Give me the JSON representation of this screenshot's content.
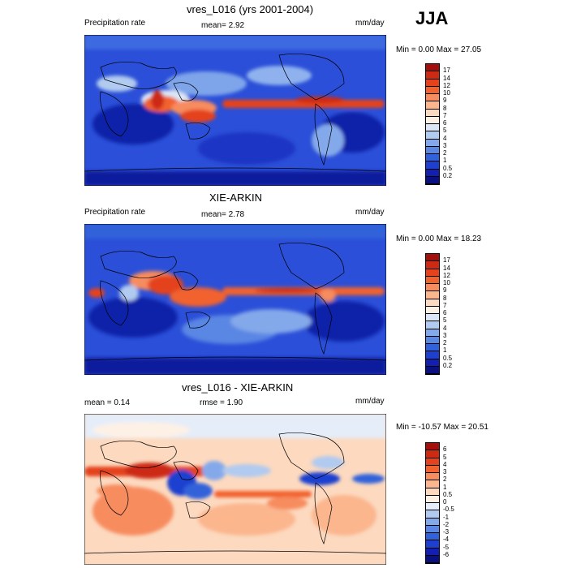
{
  "season": "JJA",
  "panels": [
    {
      "title": "vres_L016 (yrs 2001-2004)",
      "left_label": "Precipitation rate",
      "center_label": "mean=   2.92",
      "right_label": "mm/day",
      "minmax": "Min =   0.00 Max =  27.05",
      "colorbar_labels": [
        "17",
        "14",
        "12",
        "10",
        "9",
        "8",
        "7",
        "6",
        "5",
        "4",
        "3",
        "2",
        "1",
        "0.5",
        "0.2"
      ],
      "colorbar_colors": [
        "#a50f0b",
        "#cc2a12",
        "#e4431e",
        "#f2622f",
        "#f78c5f",
        "#fbb68e",
        "#fcd9bf",
        "#fdf1e6",
        "#dbe7f7",
        "#b1caf0",
        "#84a9ea",
        "#5a86e4",
        "#3262da",
        "#1f40cf",
        "#121fb0",
        "#0a0f82"
      ]
    },
    {
      "title": "XIE-ARKIN",
      "left_label": "Precipitation rate",
      "center_label": "mean=   2.78",
      "right_label": "mm/day",
      "minmax": "Min =   0.00 Max =  18.23",
      "colorbar_labels": [
        "17",
        "14",
        "12",
        "10",
        "9",
        "8",
        "7",
        "6",
        "5",
        "4",
        "3",
        "2",
        "1",
        "0.5",
        "0.2"
      ],
      "colorbar_colors": [
        "#a50f0b",
        "#cc2a12",
        "#e4431e",
        "#f2622f",
        "#f78c5f",
        "#fbb68e",
        "#fcd9bf",
        "#fdf1e6",
        "#dbe7f7",
        "#b1caf0",
        "#84a9ea",
        "#5a86e4",
        "#3262da",
        "#1f40cf",
        "#121fb0",
        "#0a0f82"
      ]
    },
    {
      "title": "vres_L016 - XIE-ARKIN",
      "left_label": "mean =   0.14",
      "center_label": "rmse =   1.90",
      "right_label": "mm/day",
      "minmax": "Min = -10.57 Max =  20.51",
      "colorbar_labels": [
        "6",
        "5",
        "4",
        "3",
        "2",
        "1",
        "0.5",
        "0",
        "-0.5",
        "-1",
        "-2",
        "-3",
        "-4",
        "-5",
        "-6"
      ],
      "colorbar_colors": [
        "#a50f0b",
        "#cc2a12",
        "#e4431e",
        "#f2622f",
        "#f78c5f",
        "#fbb68e",
        "#fcd9bf",
        "#fdf1e6",
        "#e5edf9",
        "#b1caf0",
        "#84a9ea",
        "#5a86e4",
        "#3262da",
        "#1f40cf",
        "#121fb0",
        "#0a0f82"
      ]
    }
  ]
}
